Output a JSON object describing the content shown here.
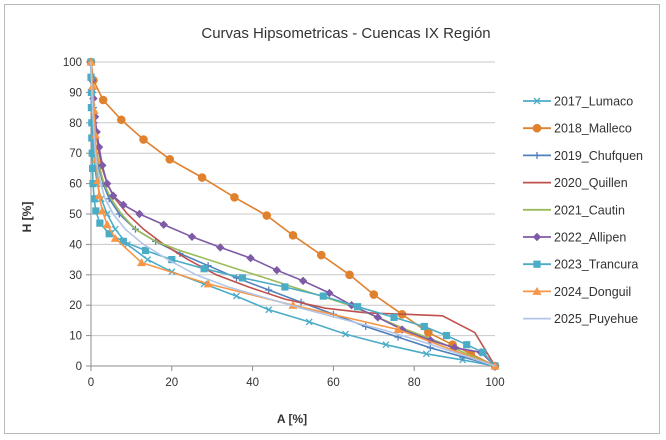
{
  "chart_data": {
    "type": "line",
    "title": "Curvas Hipsometricas - Cuencas IX Región",
    "xlabel": "A [%]",
    "ylabel": "H [%]",
    "xlim": [
      0,
      100
    ],
    "ylim": [
      0,
      100
    ],
    "x_ticks": [
      0,
      20,
      40,
      60,
      80,
      100
    ],
    "y_ticks": [
      0,
      10,
      20,
      30,
      40,
      50,
      60,
      70,
      80,
      90,
      100
    ],
    "grid": "horizontal",
    "legend_position": "right",
    "series": [
      {
        "name": "2017_Lumaco",
        "color": "#4bacc6",
        "marker": "cross",
        "points": [
          [
            0,
            100
          ],
          [
            0.1,
            95
          ],
          [
            0.2,
            90
          ],
          [
            0.3,
            85
          ],
          [
            0.4,
            80
          ],
          [
            0.5,
            75
          ],
          [
            0.7,
            70
          ],
          [
            1,
            65
          ],
          [
            1.5,
            60
          ],
          [
            2.5,
            55
          ],
          [
            4,
            50
          ],
          [
            6,
            45
          ],
          [
            9,
            40
          ],
          [
            14,
            35
          ],
          [
            20,
            31
          ],
          [
            28,
            27
          ],
          [
            36,
            23
          ],
          [
            44,
            18.5
          ],
          [
            54,
            14.5
          ],
          [
            63,
            10.5
          ],
          [
            73,
            7
          ],
          [
            83,
            4
          ],
          [
            92,
            2
          ],
          [
            100,
            0
          ]
        ]
      },
      {
        "name": "2018_Malleco",
        "color": "#e0812e",
        "marker": "circle",
        "points": [
          [
            0,
            100
          ],
          [
            0.6,
            94
          ],
          [
            3,
            87.5
          ],
          [
            7.5,
            81
          ],
          [
            13,
            74.5
          ],
          [
            19.5,
            68
          ],
          [
            27.5,
            62
          ],
          [
            35.5,
            55.5
          ],
          [
            43.5,
            49.5
          ],
          [
            50,
            43
          ],
          [
            57,
            36.5
          ],
          [
            64,
            30
          ],
          [
            70,
            23.5
          ],
          [
            77,
            17
          ],
          [
            83.5,
            11
          ],
          [
            89.5,
            7
          ],
          [
            94,
            4
          ],
          [
            100,
            0
          ]
        ]
      },
      {
        "name": "2019_Chufquen",
        "color": "#4f81bd",
        "marker": "plus",
        "points": [
          [
            0,
            100
          ],
          [
            0.2,
            95
          ],
          [
            0.4,
            90
          ],
          [
            0.6,
            85
          ],
          [
            0.8,
            80
          ],
          [
            1,
            75
          ],
          [
            1.4,
            70
          ],
          [
            2,
            65
          ],
          [
            3,
            60
          ],
          [
            4.5,
            55
          ],
          [
            7,
            50
          ],
          [
            11,
            45
          ],
          [
            16,
            41
          ],
          [
            22,
            37
          ],
          [
            29,
            33
          ],
          [
            36,
            29
          ],
          [
            44,
            25
          ],
          [
            52,
            21
          ],
          [
            60,
            17
          ],
          [
            68,
            13
          ],
          [
            76,
            9.5
          ],
          [
            84,
            6
          ],
          [
            92,
            3
          ],
          [
            100,
            0
          ]
        ]
      },
      {
        "name": "2020_Quillen",
        "color": "#c0504d",
        "marker": "none",
        "points": [
          [
            0,
            100
          ],
          [
            0.2,
            95
          ],
          [
            0.5,
            90
          ],
          [
            0.8,
            85
          ],
          [
            1.1,
            80
          ],
          [
            1.5,
            75
          ],
          [
            2,
            70
          ],
          [
            2.8,
            65
          ],
          [
            4,
            60
          ],
          [
            6,
            55
          ],
          [
            9,
            50
          ],
          [
            13,
            45
          ],
          [
            18,
            40
          ],
          [
            24,
            35
          ],
          [
            31,
            30
          ],
          [
            39,
            26
          ],
          [
            48,
            22
          ],
          [
            58,
            19
          ],
          [
            68,
            17.5
          ],
          [
            78,
            17
          ],
          [
            87,
            16.5
          ],
          [
            95,
            11
          ],
          [
            100,
            0
          ]
        ]
      },
      {
        "name": "2021_Cautin",
        "color": "#9bbb59",
        "marker": "none",
        "points": [
          [
            0,
            100
          ],
          [
            0.1,
            95
          ],
          [
            0.3,
            90
          ],
          [
            0.5,
            85
          ],
          [
            0.7,
            80
          ],
          [
            1,
            75
          ],
          [
            1.5,
            70
          ],
          [
            2.2,
            65
          ],
          [
            3.2,
            60
          ],
          [
            5,
            55
          ],
          [
            7.5,
            50
          ],
          [
            11,
            45
          ],
          [
            16,
            41
          ],
          [
            22,
            38
          ],
          [
            29,
            35
          ],
          [
            36,
            32
          ],
          [
            43,
            29
          ],
          [
            50,
            26
          ],
          [
            57,
            23
          ],
          [
            64,
            20
          ],
          [
            71,
            16
          ],
          [
            78,
            12
          ],
          [
            86,
            8
          ],
          [
            93,
            4
          ],
          [
            100,
            0
          ]
        ]
      },
      {
        "name": "2022_Allipen",
        "color": "#7f5aa6",
        "marker": "diamond",
        "points": [
          [
            0,
            100
          ],
          [
            0.3,
            94
          ],
          [
            0.6,
            88
          ],
          [
            1,
            82
          ],
          [
            1.4,
            77
          ],
          [
            2,
            72
          ],
          [
            2.8,
            66
          ],
          [
            4,
            60
          ],
          [
            5.5,
            56
          ],
          [
            8,
            53
          ],
          [
            12,
            50
          ],
          [
            18,
            46.5
          ],
          [
            25,
            42.5
          ],
          [
            32,
            39
          ],
          [
            39.5,
            35.5
          ],
          [
            46,
            31.5
          ],
          [
            52.5,
            28
          ],
          [
            59,
            24
          ],
          [
            64.5,
            20
          ],
          [
            71,
            16
          ],
          [
            77,
            12
          ],
          [
            84,
            8.5
          ],
          [
            90,
            6
          ],
          [
            96.5,
            4.5
          ],
          [
            100,
            0
          ]
        ]
      },
      {
        "name": "2023_Trancura",
        "color": "#4bacc6",
        "marker": "square",
        "points": [
          [
            0,
            100
          ],
          [
            0,
            95
          ],
          [
            0.1,
            90
          ],
          [
            0.1,
            85
          ],
          [
            0.2,
            80
          ],
          [
            0.2,
            75
          ],
          [
            0.3,
            70
          ],
          [
            0.4,
            65
          ],
          [
            0.5,
            60
          ],
          [
            0.8,
            55
          ],
          [
            1.2,
            51
          ],
          [
            2.2,
            47
          ],
          [
            4.5,
            43.5
          ],
          [
            8,
            41
          ],
          [
            13.5,
            38
          ],
          [
            20,
            35
          ],
          [
            28,
            32
          ],
          [
            37.5,
            29
          ],
          [
            48,
            26
          ],
          [
            57.5,
            23
          ],
          [
            66,
            19.5
          ],
          [
            75,
            16
          ],
          [
            82.5,
            13
          ],
          [
            88,
            10
          ],
          [
            93,
            7
          ],
          [
            97,
            4.5
          ],
          [
            100,
            0
          ]
        ]
      },
      {
        "name": "2024_Donguil",
        "color": "#f79646",
        "marker": "triangle",
        "points": [
          [
            0,
            100
          ],
          [
            0.4,
            92
          ],
          [
            0.8,
            84
          ],
          [
            1.1,
            76
          ],
          [
            1.3,
            68
          ],
          [
            1.7,
            61
          ],
          [
            2,
            56
          ],
          [
            2.8,
            51
          ],
          [
            4,
            46.5
          ],
          [
            6,
            42
          ],
          [
            12.5,
            34
          ],
          [
            29,
            27
          ],
          [
            50,
            20
          ],
          [
            76,
            12
          ],
          [
            100,
            0
          ]
        ]
      },
      {
        "name": "2025_Puyehue",
        "color": "#b3c6e7",
        "marker": "none",
        "points": [
          [
            0,
            100
          ],
          [
            0.1,
            95
          ],
          [
            0.2,
            90
          ],
          [
            0.4,
            85
          ],
          [
            0.6,
            80
          ],
          [
            0.8,
            75
          ],
          [
            1.1,
            70
          ],
          [
            1.6,
            65
          ],
          [
            2.4,
            60
          ],
          [
            3.5,
            55
          ],
          [
            5.5,
            50
          ],
          [
            8.5,
            45
          ],
          [
            13,
            40
          ],
          [
            19,
            35
          ],
          [
            26,
            30
          ],
          [
            34,
            26
          ],
          [
            43,
            22.5
          ],
          [
            52,
            19
          ],
          [
            62,
            15.5
          ],
          [
            72,
            12
          ],
          [
            82,
            8
          ],
          [
            91,
            4
          ],
          [
            100,
            0
          ]
        ]
      }
    ]
  }
}
